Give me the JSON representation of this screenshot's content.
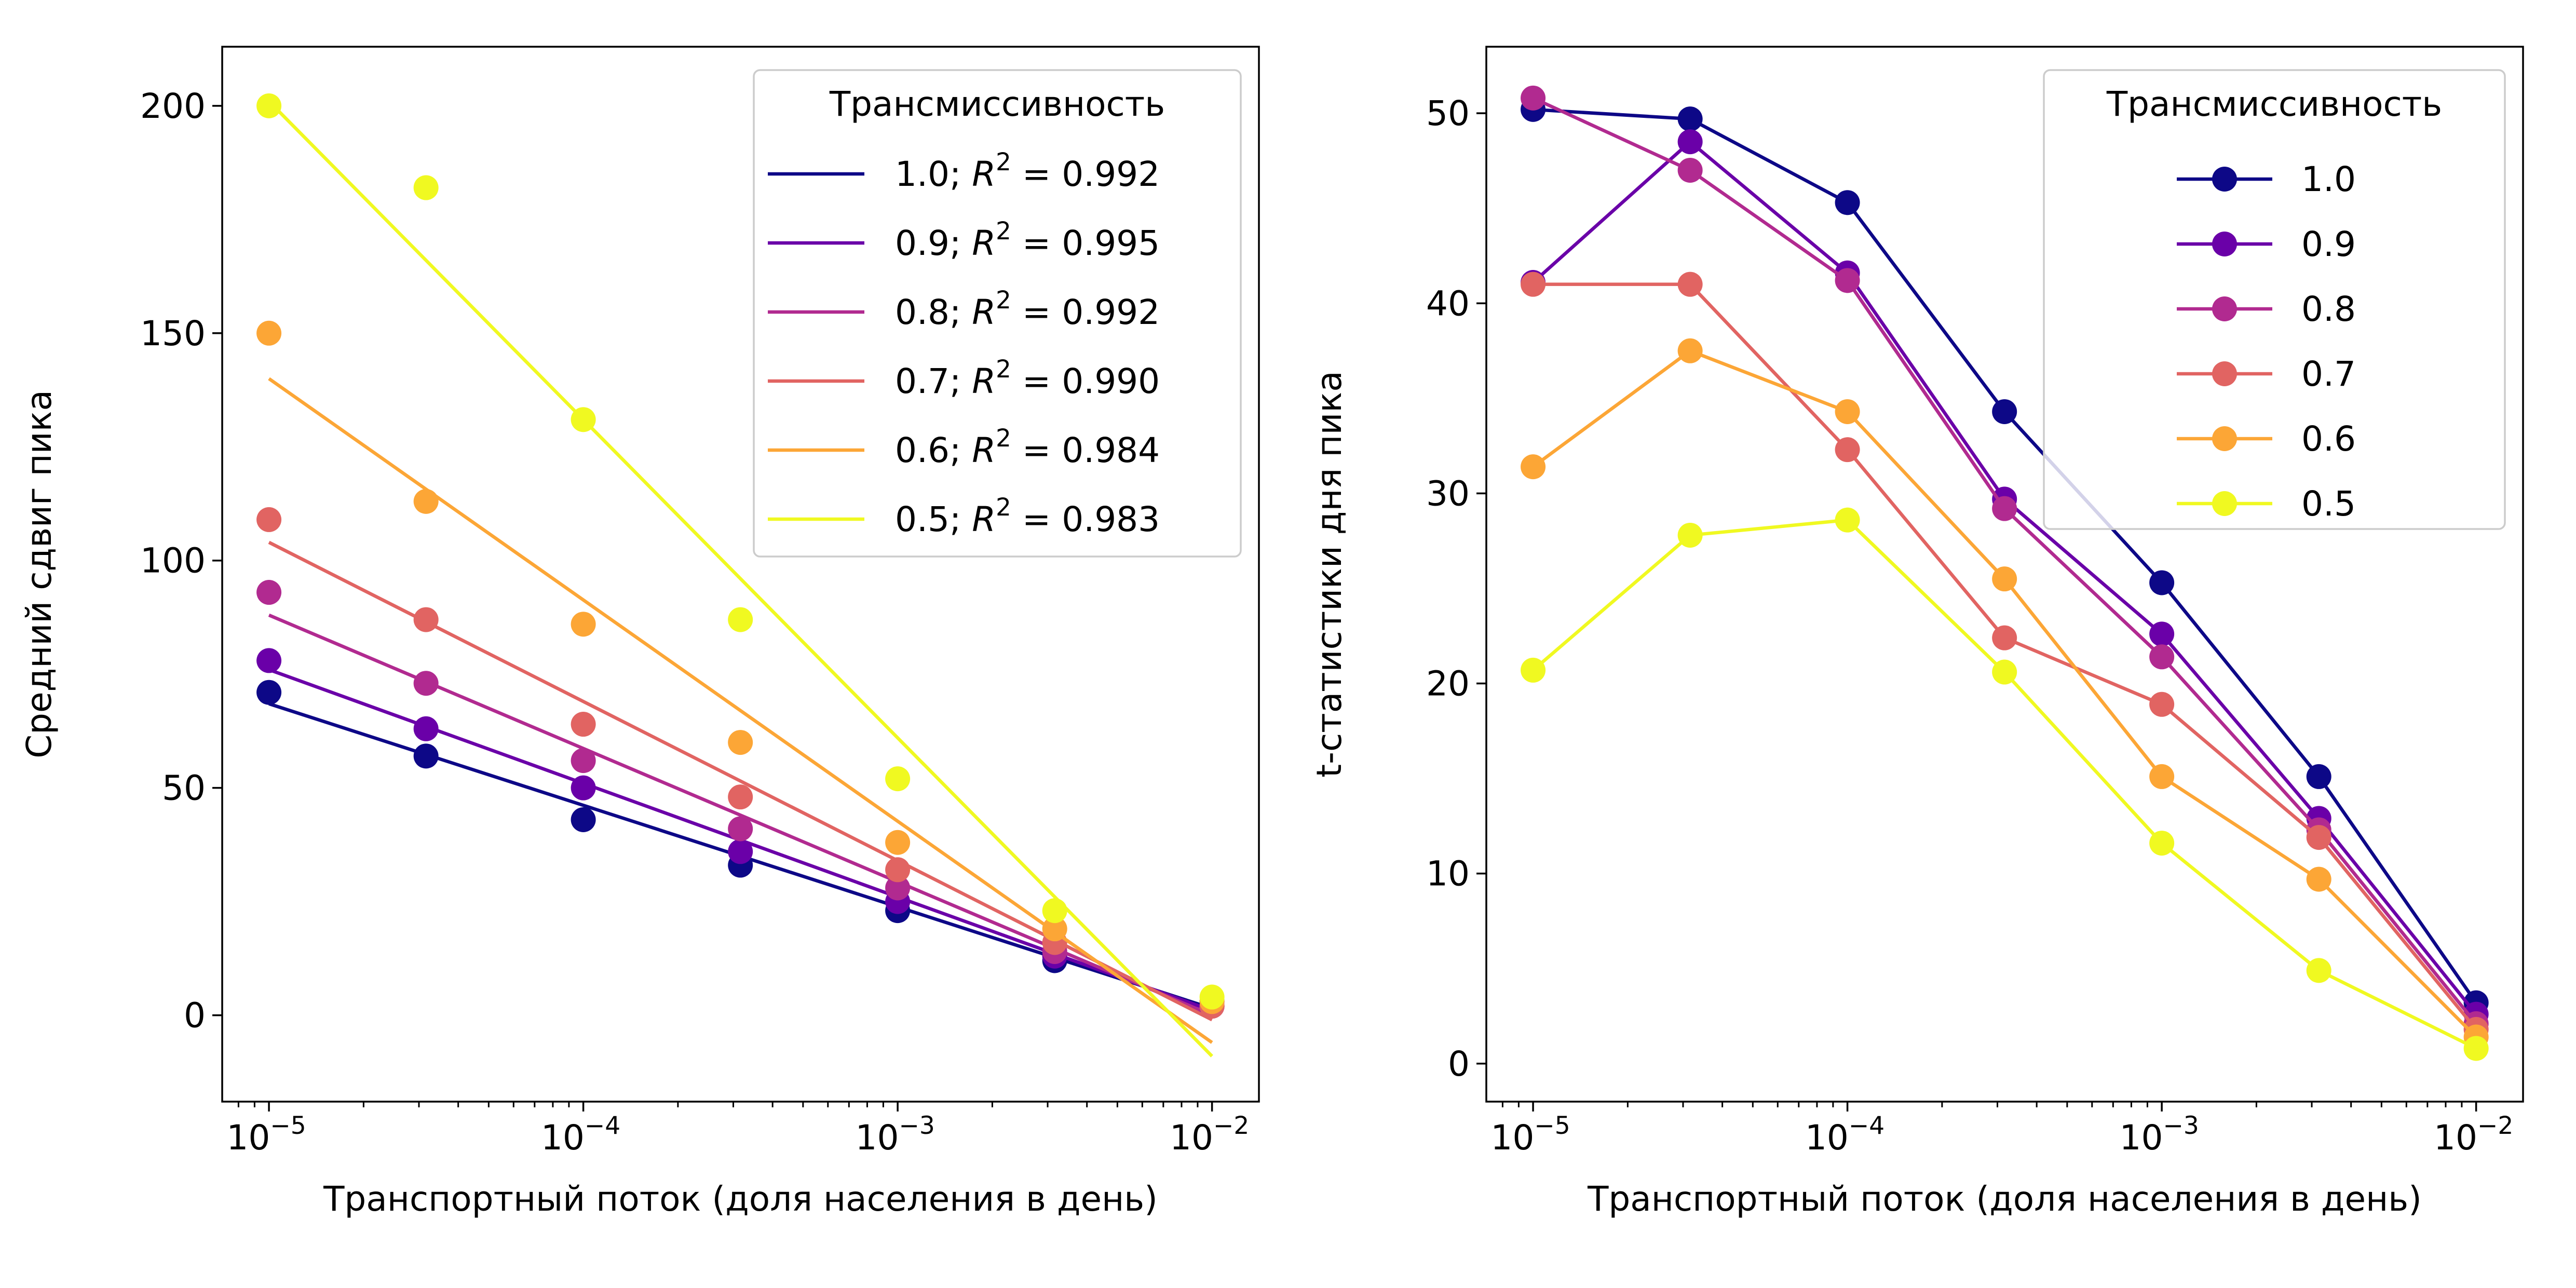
{
  "chart_data": [
    {
      "type": "scatter",
      "xscale": "log",
      "xlabel": "Транспортный поток (доля населения в день)",
      "ylabel": "Средний сдвиг пика",
      "xlim": [
        7.1e-06,
        0.0141
      ],
      "ylim": [
        -19,
        213
      ],
      "xticks": [
        1e-05,
        0.0001,
        0.001,
        0.01
      ],
      "xtick_labels": [
        [
          "10",
          "−5"
        ],
        [
          "10",
          "−4"
        ],
        [
          "10",
          "−3"
        ],
        [
          "10",
          "−2"
        ]
      ],
      "yticks": [
        0,
        50,
        100,
        150,
        200
      ],
      "ytick_labels": [
        "0",
        "50",
        "100",
        "150",
        "200"
      ],
      "x": [
        1e-05,
        3.16e-05,
        0.0001,
        0.000316,
        0.001,
        0.00316,
        0.01
      ],
      "grid": false,
      "legend": {
        "title": "Трансмиссивность",
        "placement": "top-right",
        "entries": [
          {
            "label": "1.0",
            "r2": "0.992"
          },
          {
            "label": "0.9",
            "r2": "0.995"
          },
          {
            "label": "0.8",
            "r2": "0.992"
          },
          {
            "label": "0.7",
            "r2": "0.990"
          },
          {
            "label": "0.6",
            "r2": "0.984"
          },
          {
            "label": "0.5",
            "r2": "0.983"
          }
        ]
      },
      "series": [
        {
          "name": "1.0",
          "color": "#0d0887",
          "values": [
            71,
            57,
            43,
            33,
            23,
            12,
            3
          ],
          "fit": [
            68.5,
            1.5
          ]
        },
        {
          "name": "0.9",
          "color": "#6a00a8",
          "values": [
            78,
            63,
            50,
            36,
            25,
            13,
            2
          ],
          "fit": [
            76,
            1
          ]
        },
        {
          "name": "0.8",
          "color": "#b12a90",
          "values": [
            93,
            73,
            56,
            41,
            28,
            14,
            2
          ],
          "fit": [
            88,
            0
          ]
        },
        {
          "name": "0.7",
          "color": "#e16462",
          "values": [
            109,
            87,
            64,
            48,
            32,
            16,
            2
          ],
          "fit": [
            104,
            -1
          ]
        },
        {
          "name": "0.6",
          "color": "#fca636",
          "values": [
            150,
            113,
            86,
            60,
            38,
            19,
            3
          ],
          "fit": [
            140,
            -6
          ]
        },
        {
          "name": "0.5",
          "color": "#f0f921",
          "values": [
            200,
            182,
            131,
            87,
            52,
            23,
            4
          ],
          "fit": [
            201,
            -9
          ]
        }
      ]
    },
    {
      "type": "line",
      "xscale": "log",
      "xlabel": "Транспортный поток (доля населения в день)",
      "ylabel": "t-статистики дня пика",
      "xlim": [
        7.1e-06,
        0.0141
      ],
      "ylim": [
        -2,
        53.5
      ],
      "xticks": [
        1e-05,
        0.0001,
        0.001,
        0.01
      ],
      "xtick_labels": [
        [
          "10",
          "−5"
        ],
        [
          "10",
          "−4"
        ],
        [
          "10",
          "−3"
        ],
        [
          "10",
          "−2"
        ]
      ],
      "yticks": [
        0,
        10,
        20,
        30,
        40,
        50
      ],
      "ytick_labels": [
        "0",
        "10",
        "20",
        "30",
        "40",
        "50"
      ],
      "x": [
        1e-05,
        3.16e-05,
        0.0001,
        0.000316,
        0.001,
        0.00316,
        0.01
      ],
      "grid": false,
      "legend": {
        "title": "Трансмиссивность",
        "placement": "top-right",
        "entries": [
          "1.0",
          "0.9",
          "0.8",
          "0.7",
          "0.6",
          "0.5"
        ]
      },
      "series": [
        {
          "name": "1.0",
          "color": "#0d0887",
          "values": [
            50.2,
            49.7,
            45.3,
            34.3,
            25.3,
            15.1,
            3.2
          ]
        },
        {
          "name": "0.9",
          "color": "#6a00a8",
          "values": [
            41.1,
            48.5,
            41.6,
            29.7,
            22.6,
            12.9,
            2.6
          ]
        },
        {
          "name": "0.8",
          "color": "#b12a90",
          "values": [
            50.8,
            47.0,
            41.2,
            29.2,
            21.4,
            12.3,
            2.1
          ]
        },
        {
          "name": "0.7",
          "color": "#e16462",
          "values": [
            41.0,
            41.0,
            32.3,
            22.4,
            18.9,
            11.9,
            1.8
          ]
        },
        {
          "name": "0.6",
          "color": "#fca636",
          "values": [
            31.4,
            37.5,
            34.3,
            25.5,
            15.1,
            9.7,
            1.4
          ]
        },
        {
          "name": "0.5",
          "color": "#f0f921",
          "values": [
            20.7,
            27.8,
            28.6,
            20.6,
            11.6,
            4.9,
            0.8
          ]
        }
      ]
    }
  ]
}
